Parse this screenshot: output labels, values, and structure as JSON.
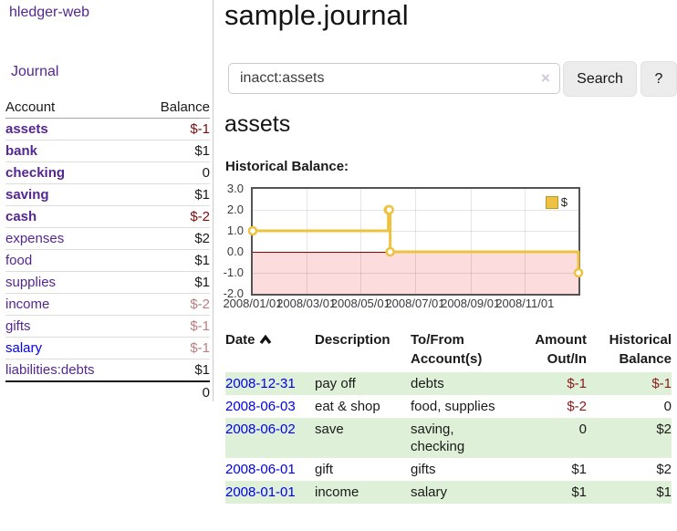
{
  "brand": "hledger-web",
  "sidebar": {
    "journal_link": "Journal",
    "accounts": {
      "header_account": "Account",
      "header_balance": "Balance",
      "rows": [
        {
          "name": "assets",
          "balance": "$-1"
        },
        {
          "name": "bank",
          "balance": "$1"
        },
        {
          "name": "checking",
          "balance": "0"
        },
        {
          "name": "saving",
          "balance": "$1"
        },
        {
          "name": "cash",
          "balance": "$-2"
        },
        {
          "name": "expenses",
          "balance": "$2"
        },
        {
          "name": "food",
          "balance": "$1"
        },
        {
          "name": "supplies",
          "balance": "$1"
        },
        {
          "name": "income",
          "balance": "$-2"
        },
        {
          "name": "gifts",
          "balance": "$-1"
        },
        {
          "name": "salary",
          "balance": "$-1"
        },
        {
          "name": "liabilities:debts",
          "balance": "$1"
        }
      ],
      "total": "0"
    }
  },
  "main": {
    "title": "sample.journal",
    "search": {
      "value": "inacct:assets",
      "clear_icon": "×",
      "button_label": "Search",
      "help_label": "?"
    },
    "account_heading": "assets",
    "section_label": "Historical Balance:"
  },
  "chart_data": {
    "type": "line",
    "title": "Historical Balance:",
    "series": [
      {
        "name": "$",
        "color": "#edc240",
        "step": true,
        "points": [
          {
            "x": "2008-01-01",
            "y": 1
          },
          {
            "x": "2008-06-01",
            "y": 2
          },
          {
            "x": "2008-06-02",
            "y": 2
          },
          {
            "x": "2008-06-03",
            "y": 0
          },
          {
            "x": "2008-12-31",
            "y": -1
          }
        ]
      }
    ],
    "x_range": [
      "2008-01-01",
      "2008-12-31"
    ],
    "ylim": [
      -2,
      3
    ],
    "yticks": [
      "3.0",
      "2.0",
      "1.0",
      "0.0",
      "-1.0",
      "-2.0"
    ],
    "xticks": [
      "2008/01/01",
      "2008/03/01",
      "2008/05/01",
      "2008/07/01",
      "2008/09/01",
      "2008/11/01"
    ],
    "grid": true,
    "legend_position": "top-right",
    "negative_region_color": "#fcdcdc",
    "zero_line_color": "#8b0000",
    "border_color": "#545454"
  },
  "register": {
    "header": {
      "date": "Date",
      "sort_icon": "chevron-up",
      "description": "Description",
      "accounts_line1": "To/From",
      "accounts_line2": "Account(s)",
      "amount_line1": "Amount",
      "amount_line2": "Out/In",
      "balance_line1": "Historical",
      "balance_line2": "Balance"
    },
    "rows": [
      {
        "date": "2008-12-31",
        "description": "pay off",
        "accounts": "debts",
        "amount": "$-1",
        "balance": "$-1"
      },
      {
        "date": "2008-06-03",
        "description": "eat & shop",
        "accounts": "food, supplies",
        "amount": "$-2",
        "balance": "0"
      },
      {
        "date": "2008-06-02",
        "description": "save",
        "accounts": "saving, checking",
        "amount": "0",
        "balance": "$2"
      },
      {
        "date": "2008-06-01",
        "description": "gift",
        "accounts": "gifts",
        "amount": "$1",
        "balance": "$2"
      },
      {
        "date": "2008-01-01",
        "description": "income",
        "accounts": "salary",
        "amount": "$1",
        "balance": "$1"
      }
    ]
  },
  "colors": {
    "link_purple": "#54278f",
    "link_blue": "#0000ee",
    "negative_strong": "#7a0c0c",
    "negative_soft": "#bb7d7d",
    "negative_register": "#8b1a1a",
    "row_green": "#dff0d8"
  }
}
